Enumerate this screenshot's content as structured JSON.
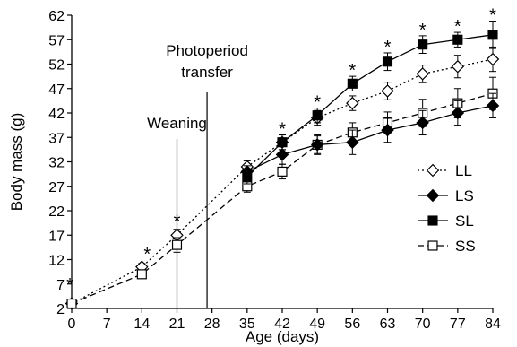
{
  "chart_data": {
    "type": "line",
    "xlabel": "Age (days)",
    "ylabel": "Body mass (g)",
    "xlim": [
      0,
      84
    ],
    "ylim": [
      2,
      62
    ],
    "xticks": [
      0,
      7,
      14,
      21,
      28,
      35,
      42,
      49,
      56,
      63,
      70,
      77,
      84
    ],
    "yticks": [
      2,
      7,
      12,
      17,
      22,
      27,
      32,
      37,
      42,
      47,
      52,
      57,
      62
    ],
    "grid": false,
    "legend_position": "right",
    "series": [
      {
        "name": "LL",
        "x": [
          0,
          14,
          21,
          35,
          42,
          49,
          56,
          63,
          70,
          77,
          84
        ],
        "y": [
          3,
          10.5,
          17,
          31,
          36,
          41,
          44,
          46.5,
          50,
          51.5,
          53
        ],
        "err": [
          0.5,
          0.7,
          1.2,
          1.2,
          1.5,
          1.5,
          1.5,
          1.8,
          1.8,
          2.3,
          2.5
        ],
        "marker": "diamond-open",
        "line": "dotted"
      },
      {
        "name": "LS",
        "x": [
          35,
          42,
          49,
          56,
          63,
          70,
          77,
          84
        ],
        "y": [
          30,
          33.5,
          35.5,
          36,
          38.5,
          40,
          42,
          43.5
        ],
        "err": [
          1.2,
          2.0,
          1.8,
          2.5,
          2.5,
          2.5,
          2.5,
          2.5
        ],
        "marker": "diamond-filled",
        "line": "solid"
      },
      {
        "name": "SL",
        "x": [
          35,
          42,
          49,
          56,
          63,
          70,
          77,
          84
        ],
        "y": [
          29,
          36,
          41.5,
          48,
          52.5,
          56,
          57,
          58
        ],
        "err": [
          1.5,
          1.5,
          1.5,
          1.5,
          1.8,
          1.8,
          1.5,
          2.8
        ],
        "marker": "square-filled",
        "line": "solid"
      },
      {
        "name": "SS",
        "x": [
          0,
          14,
          21,
          35,
          42,
          49,
          56,
          63,
          70,
          77,
          84
        ],
        "y": [
          3,
          9,
          15,
          27,
          30,
          35.5,
          38,
          40,
          42,
          44,
          46
        ],
        "err": [
          0.5,
          0.7,
          1.5,
          1.2,
          1.5,
          2.0,
          2.0,
          2.2,
          2.8,
          3.0,
          3.3
        ],
        "marker": "square-open",
        "line": "dashed"
      }
    ],
    "significance_markers": {
      "symbol": "*",
      "x": [
        0,
        14,
        21,
        42,
        49,
        56,
        63,
        70,
        77,
        84
      ]
    },
    "annotations": [
      {
        "text": "Weaning",
        "x": 21
      },
      {
        "text": "Photoperiod\ntransfer",
        "x": 27
      }
    ]
  }
}
